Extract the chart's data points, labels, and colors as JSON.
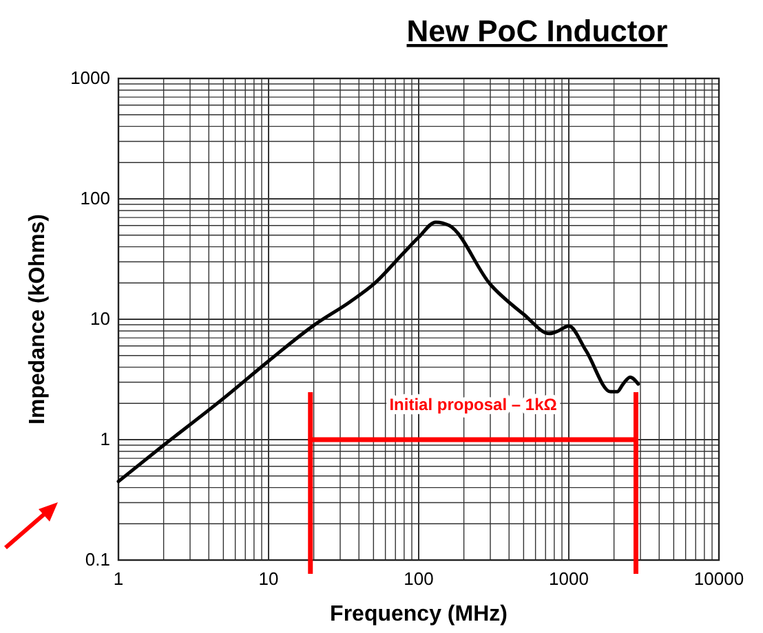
{
  "chart_data": {
    "type": "line",
    "title": "New PoC Inductor",
    "xlabel": "Frequency (MHz)",
    "ylabel": "Impedance (kOhms)",
    "log": "xy",
    "grid": true,
    "marker": "none",
    "line_style": "solid",
    "xlim": [
      1,
      10000
    ],
    "ylim": [
      0.1,
      1000
    ],
    "xticks": [
      1,
      {
        "value": 2,
        "label": null
      },
      {
        "value": 3,
        "label": null
      },
      {
        "value": 4,
        "label": null
      },
      {
        "value": 5,
        "label": null
      },
      {
        "value": 6,
        "label": null
      },
      {
        "value": 7,
        "label": null
      },
      {
        "value": 8,
        "label": null
      },
      {
        "value": 9,
        "label": null
      },
      10,
      {
        "value": 20,
        "label": null
      },
      {
        "value": 30,
        "label": null
      },
      {
        "value": 40,
        "label": null
      },
      {
        "value": 50,
        "label": null
      },
      {
        "value": 60,
        "label": null
      },
      {
        "value": 70,
        "label": null
      },
      {
        "value": 80,
        "label": null
      },
      {
        "value": 90,
        "label": null
      },
      100,
      {
        "value": 200,
        "label": null
      },
      {
        "value": 300,
        "label": null
      },
      {
        "value": 400,
        "label": null
      },
      {
        "value": 500,
        "label": null
      },
      {
        "value": 600,
        "label": null
      },
      {
        "value": 700,
        "label": null
      },
      {
        "value": 800,
        "label": null
      },
      {
        "value": 900,
        "label": null
      },
      1000,
      {
        "value": 2000,
        "label": null
      },
      {
        "value": 3000,
        "label": null
      },
      {
        "value": 4000,
        "label": null
      },
      {
        "value": 5000,
        "label": null
      },
      {
        "value": 6000,
        "label": null
      },
      {
        "value": 7000,
        "label": null
      },
      {
        "value": 8000,
        "label": null
      },
      {
        "value": 9000,
        "label": null
      },
      10000
    ],
    "yticks": [
      0.1,
      {
        "value": 0.2,
        "label": null
      },
      {
        "value": 0.3,
        "label": null
      },
      {
        "value": 0.4,
        "label": null
      },
      {
        "value": 0.5,
        "label": null
      },
      {
        "value": 0.6,
        "label": null
      },
      {
        "value": 0.7,
        "label": null
      },
      {
        "value": 0.8,
        "label": null
      },
      {
        "value": 0.9,
        "label": null
      },
      1,
      {
        "value": 2,
        "label": null
      },
      {
        "value": 3,
        "label": null
      },
      {
        "value": 4,
        "label": null
      },
      {
        "value": 5,
        "label": null
      },
      {
        "value": 6,
        "label": null
      },
      {
        "value": 7,
        "label": null
      },
      {
        "value": 8,
        "label": null
      },
      {
        "value": 9,
        "label": null
      },
      10,
      {
        "value": 20,
        "label": null
      },
      {
        "value": 30,
        "label": null
      },
      {
        "value": 40,
        "label": null
      },
      {
        "value": 50,
        "label": null
      },
      {
        "value": 60,
        "label": null
      },
      {
        "value": 70,
        "label": null
      },
      {
        "value": 80,
        "label": null
      },
      {
        "value": 90,
        "label": null
      },
      100,
      {
        "value": 200,
        "label": null
      },
      {
        "value": 300,
        "label": null
      },
      {
        "value": 400,
        "label": null
      },
      {
        "value": 500,
        "label": null
      },
      {
        "value": 600,
        "label": null
      },
      {
        "value": 700,
        "label": null
      },
      {
        "value": 800,
        "label": null
      },
      {
        "value": 900,
        "label": null
      },
      1000
    ],
    "series": [
      {
        "color": "#000000",
        "x": [
          1,
          2,
          5,
          10,
          20,
          35,
          50,
          80,
          100,
          130,
          160,
          300,
          500,
          745,
          850,
          1000,
          1300,
          1900,
          2100,
          2300,
          2560,
          2900
        ],
        "values": [
          0.45,
          0.9,
          2.2,
          4.5,
          8.9,
          14,
          19.5,
          36,
          48,
          64,
          60,
          19.5,
          11,
          7.6,
          8.0,
          8.8,
          5.5,
          2.5,
          2.5,
          2.9,
          3.3,
          2.9
        ]
      },
      {
        "color": "#ff0000",
        "x": [
          19,
          2800
        ],
        "values": [
          1,
          1
        ]
      }
    ],
    "ref_lines": [
      {
        "axis": "x",
        "value": 19,
        "color": "#ff0000"
      },
      {
        "axis": "x",
        "value": 2800,
        "color": "#ff0000"
      }
    ],
    "annotations": [
      "Initial proposal – 1kΩ"
    ]
  }
}
